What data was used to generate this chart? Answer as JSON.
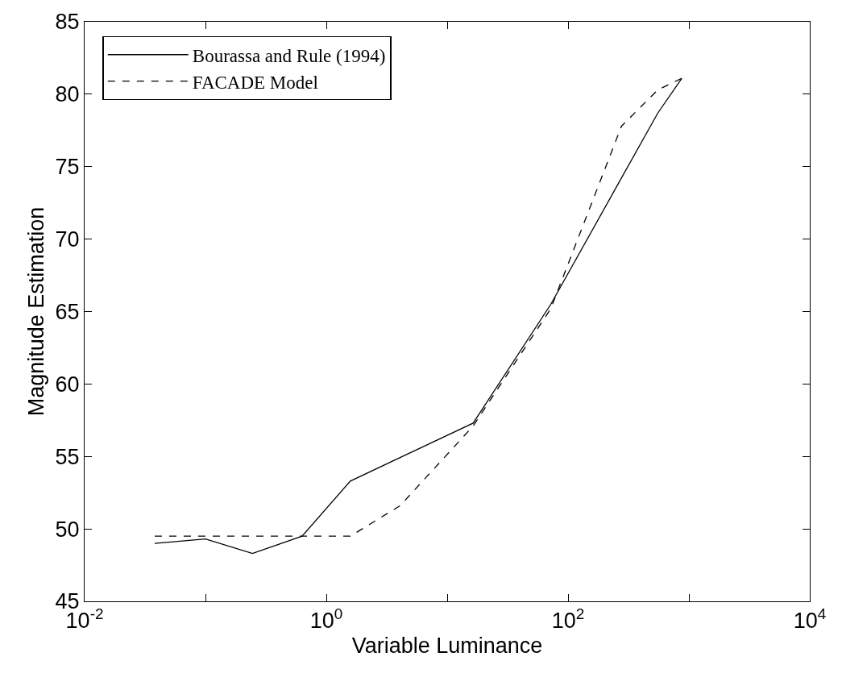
{
  "chart_data": {
    "type": "line",
    "xlabel": "Variable Luminance",
    "ylabel": "Magnitude Estimation",
    "log": "x",
    "grid": false,
    "legend": "top left",
    "marker": "none",
    "xlim": [
      0.01,
      10000
    ],
    "xticks": [
      {
        "value": 0.01,
        "label": "10$^{-2}$"
      },
      {
        "value": 0.1,
        "label": null
      },
      {
        "value": 1,
        "label": "10$^{0}$"
      },
      {
        "value": 10,
        "label": null
      },
      {
        "value": 100,
        "label": "10$^{2}$"
      },
      {
        "value": 1000,
        "label": null
      },
      {
        "value": 10000,
        "label": "10$^{4}$"
      }
    ],
    "ylim": [
      45,
      85
    ],
    "yticks": [
      45,
      50,
      55,
      60,
      65,
      70,
      75,
      80,
      85
    ],
    "series": [
      {
        "name": "Bourassa and Rule (1994)",
        "color": "#000000",
        "line_style": "solid",
        "x": [
          0.038,
          0.1,
          0.245,
          0.63,
          1.58,
          16.4,
          72,
          553,
          874
        ],
        "values": [
          49.0,
          49.3,
          48.3,
          49.5,
          53.3,
          57.3,
          65.5,
          78.7,
          81.1
        ]
      },
      {
        "name": "FACADE Model",
        "color": "#000000",
        "line_style": "dashed",
        "x": [
          0.038,
          1.58,
          4.08,
          16.4,
          72,
          277,
          553,
          874
        ],
        "values": [
          49.5,
          49.5,
          51.6,
          57.1,
          65.2,
          77.8,
          80.3,
          81.1
        ]
      }
    ]
  }
}
